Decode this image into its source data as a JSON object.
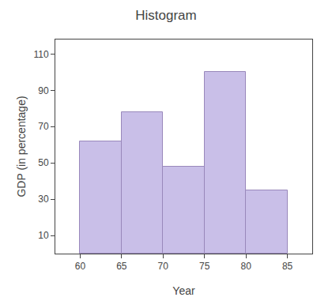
{
  "chart_data": {
    "type": "histogram",
    "title": "Histogram",
    "xlabel": "Year",
    "ylabel": "GDP (in percentage)",
    "bins": [
      60,
      65,
      70,
      75,
      80,
      85
    ],
    "values": [
      62,
      78,
      48,
      100,
      35
    ],
    "color": "#c9bfe8",
    "xlim": [
      57,
      88
    ],
    "xticks": [
      60,
      65,
      70,
      75,
      80,
      85
    ],
    "ylim": [
      0,
      118
    ],
    "yticks": [
      10,
      30,
      50,
      70,
      90,
      110
    ],
    "grid": false
  }
}
